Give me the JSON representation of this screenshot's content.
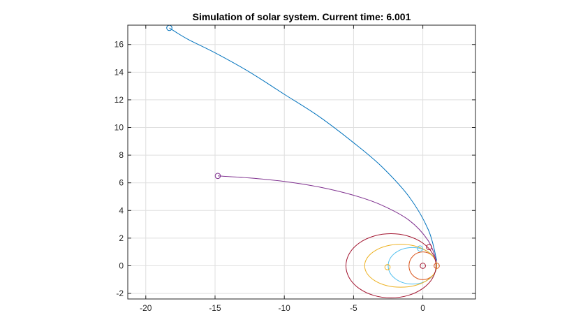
{
  "chart_data": {
    "type": "line",
    "title": "Simulation of solar system. Current time: 6.001",
    "xlabel": "",
    "ylabel": "",
    "xlim": [
      -21.3,
      3.8
    ],
    "ylim": [
      -2.4,
      17.4
    ],
    "xticks": [
      -20,
      -15,
      -10,
      -5,
      0
    ],
    "yticks": [
      -2,
      0,
      2,
      4,
      6,
      8,
      10,
      12,
      14,
      16
    ],
    "xtick_labels": [
      "-20",
      "-15",
      "-10",
      "-5",
      "0"
    ],
    "ytick_labels": [
      "-2",
      "0",
      "2",
      "4",
      "6",
      "8",
      "10",
      "12",
      "14",
      "16"
    ],
    "grid": true,
    "legend": "none",
    "series": [
      {
        "kind": "ellipse",
        "color": "#D95319",
        "center": [
          0,
          0
        ],
        "rx": 1.0,
        "ry": 1.0,
        "marker": [
          1.0,
          0.0
        ]
      },
      {
        "kind": "ellipse",
        "color": "#4DBEEE",
        "center": [
          -0.75,
          0
        ],
        "rx": 1.75,
        "ry": 1.32,
        "marker": [
          -0.2,
          1.25
        ]
      },
      {
        "kind": "ellipse",
        "color": "#EDB120",
        "center": [
          -1.6,
          0
        ],
        "rx": 2.6,
        "ry": 1.55,
        "marker": [
          -2.55,
          -0.1
        ]
      },
      {
        "kind": "ellipse",
        "color": "#A2142F",
        "center": [
          -2.3,
          0
        ],
        "rx": 3.25,
        "ry": 2.32,
        "marker": [
          0.45,
          1.35
        ]
      },
      {
        "kind": "curve",
        "color": "#7E2F8E",
        "x": [
          1.0,
          0.4,
          -1.0,
          -3.0,
          -5.0,
          -7.5,
          -10.0,
          -12.5,
          -14.8
        ],
        "y": [
          0.3,
          1.8,
          3.3,
          4.4,
          5.1,
          5.7,
          6.1,
          6.35,
          6.5
        ],
        "marker": [
          -14.8,
          6.5
        ]
      },
      {
        "kind": "curve",
        "color": "#0072BD",
        "x": [
          1.0,
          0.4,
          -1.0,
          -3.0,
          -5.0,
          -7.5,
          -10.0,
          -12.5,
          -15.0,
          -17.0,
          -18.3
        ],
        "y": [
          0.4,
          2.6,
          5.0,
          7.2,
          8.9,
          10.8,
          12.4,
          14.0,
          15.4,
          16.4,
          17.2
        ],
        "marker": [
          -18.3,
          17.2
        ]
      },
      {
        "kind": "point",
        "color": "#A2142F",
        "marker": [
          0.0,
          0.0
        ]
      }
    ]
  }
}
